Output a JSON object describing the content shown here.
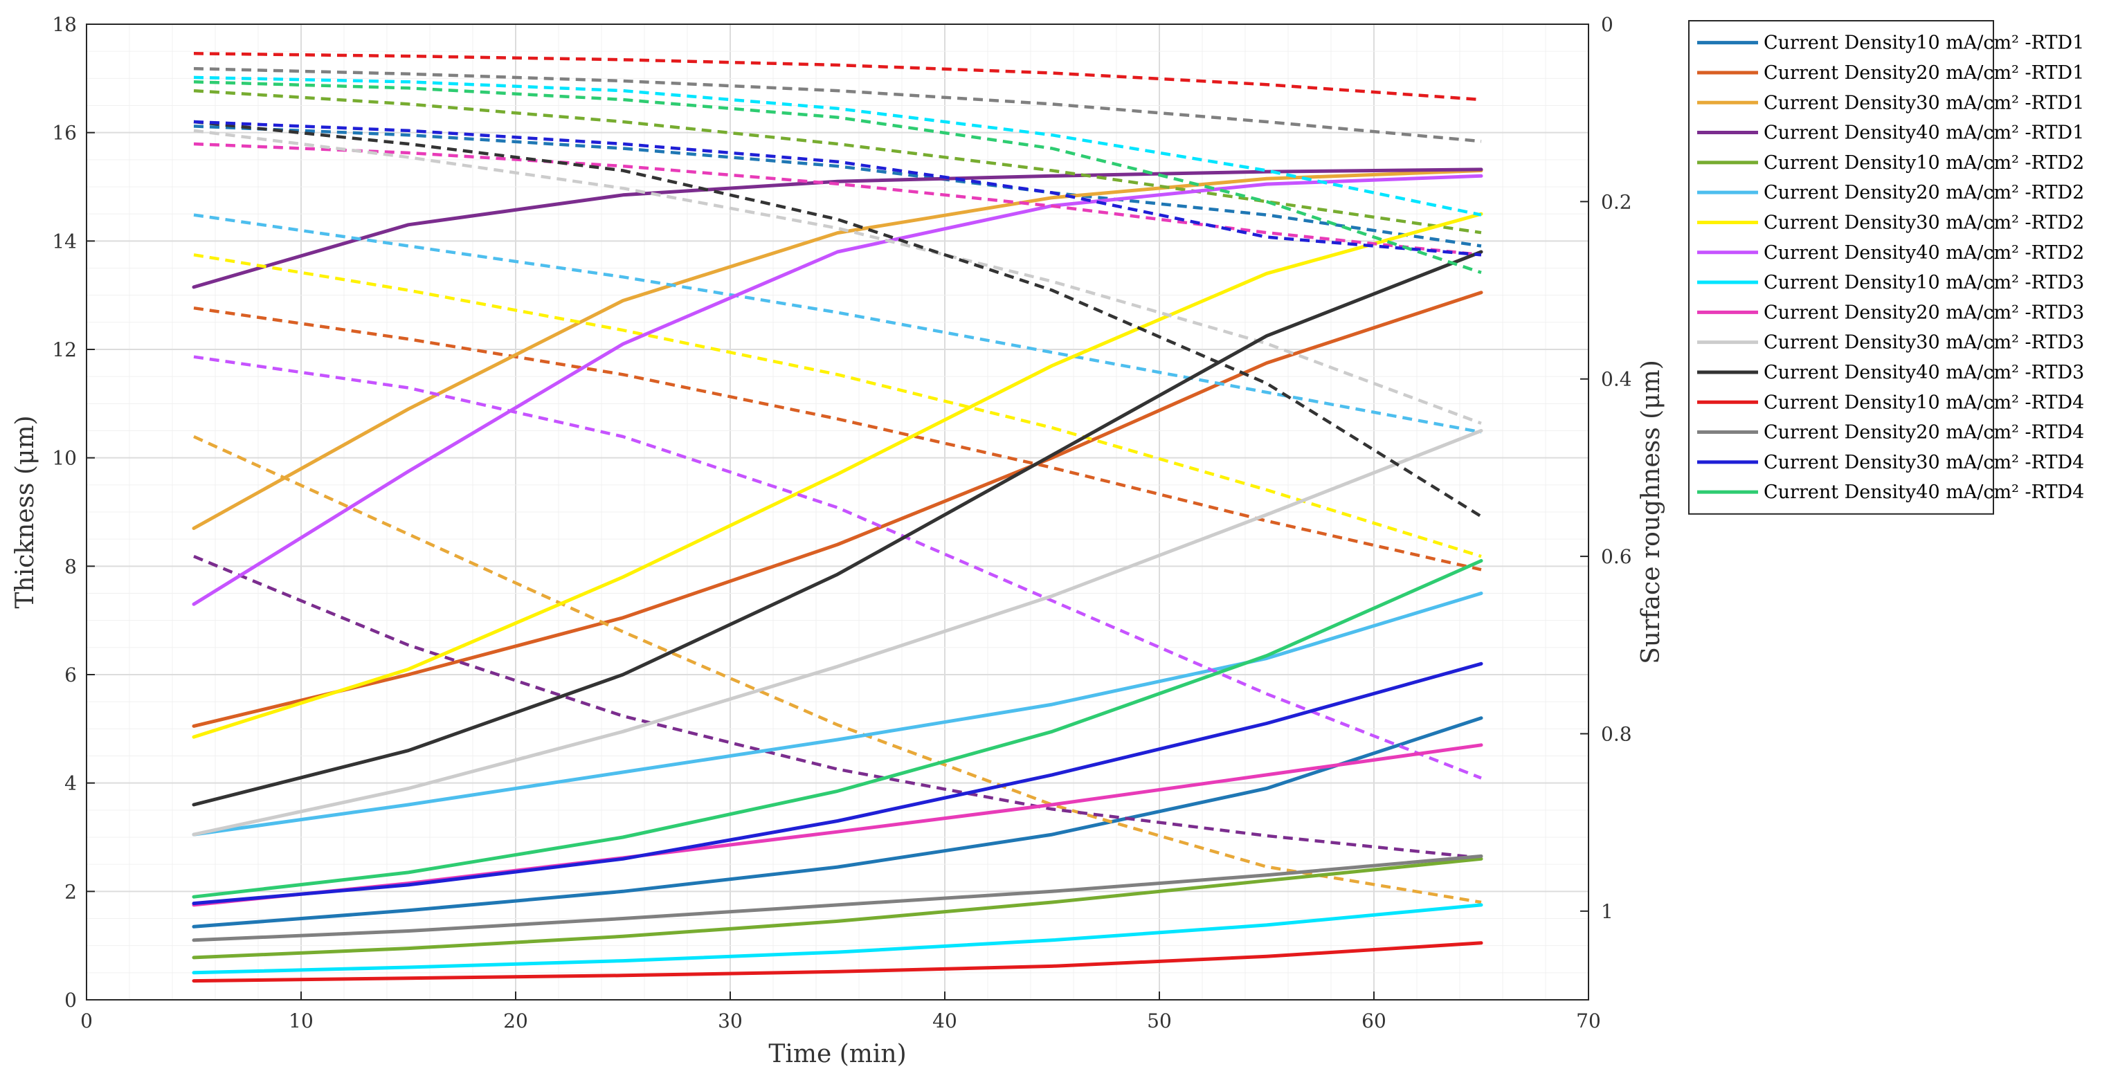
{
  "chart_data": {
    "type": "line",
    "xlabel": "Time (min)",
    "ylabel_left": "Thickness (μm)",
    "ylabel_right": "Surface roughness (μm)",
    "xlim": [
      0,
      70
    ],
    "ylim_left": [
      0,
      18
    ],
    "ylim_right": [
      1.1,
      0
    ],
    "x_ticks": [
      "0",
      "10",
      "20",
      "30",
      "40",
      "50",
      "60",
      "70"
    ],
    "y_left_ticks": [
      "0",
      "2",
      "4",
      "6",
      "8",
      "10",
      "12",
      "14",
      "16",
      "18"
    ],
    "y_right_ticks": [
      "0",
      "0.2",
      "0.4",
      "0.6",
      "0.8",
      "1"
    ],
    "grid": true,
    "legend_position": "outside-top-right",
    "x": [
      5,
      15,
      25,
      35,
      45,
      55,
      65
    ],
    "series": [
      {
        "name": "Current Density10 mA/cm² -RTD1",
        "color": "#1f77b4",
        "thickness": [
          1.35,
          1.65,
          2.0,
          2.45,
          3.05,
          3.9,
          5.2
        ],
        "roughness": [
          0.115,
          0.125,
          0.14,
          0.16,
          0.19,
          0.215,
          0.25
        ]
      },
      {
        "name": "Current Density20 mA/cm² -RTD1",
        "color": "#d95f23",
        "thickness": [
          5.05,
          6.0,
          7.05,
          8.4,
          10.0,
          11.75,
          13.05
        ],
        "roughness": [
          0.32,
          0.355,
          0.395,
          0.445,
          0.5,
          0.56,
          0.615
        ]
      },
      {
        "name": "Current Density30 mA/cm² -RTD1",
        "color": "#e8a838",
        "thickness": [
          8.7,
          10.9,
          12.9,
          14.15,
          14.8,
          15.15,
          15.3
        ],
        "roughness": [
          0.465,
          0.575,
          0.685,
          0.79,
          0.88,
          0.95,
          0.99
        ]
      },
      {
        "name": "Current Density40 mA/cm² -RTD1",
        "color": "#7b2d8e",
        "thickness": [
          13.15,
          14.3,
          14.85,
          15.1,
          15.2,
          15.28,
          15.32
        ],
        "roughness": [
          0.6,
          0.7,
          0.78,
          0.84,
          0.885,
          0.915,
          0.94
        ]
      },
      {
        "name": "Current Density10 mA/cm² -RTD2",
        "color": "#77ac30",
        "thickness": [
          0.78,
          0.95,
          1.17,
          1.45,
          1.8,
          2.2,
          2.6
        ],
        "roughness": [
          0.075,
          0.09,
          0.11,
          0.135,
          0.165,
          0.2,
          0.235
        ]
      },
      {
        "name": "Current Density20 mA/cm² -RTD2",
        "color": "#4dbeee",
        "thickness": [
          3.05,
          3.6,
          4.2,
          4.8,
          5.45,
          6.3,
          7.5
        ],
        "roughness": [
          0.215,
          0.25,
          0.285,
          0.325,
          0.37,
          0.415,
          0.46
        ]
      },
      {
        "name": "Current Density30 mA/cm² -RTD2",
        "color": "#fff200",
        "thickness": [
          4.85,
          6.1,
          7.8,
          9.7,
          11.7,
          13.4,
          14.5
        ],
        "roughness": [
          0.26,
          0.3,
          0.345,
          0.395,
          0.455,
          0.525,
          0.6
        ]
      },
      {
        "name": "Current Density40 mA/cm² -RTD2",
        "color": "#c653ff",
        "thickness": [
          7.3,
          9.75,
          12.1,
          13.8,
          14.65,
          15.05,
          15.2
        ],
        "roughness": [
          0.375,
          0.41,
          0.465,
          0.545,
          0.65,
          0.755,
          0.85
        ]
      },
      {
        "name": "Current Density10 mA/cm² -RTD3",
        "color": "#00e5ff",
        "thickness": [
          0.5,
          0.6,
          0.72,
          0.88,
          1.1,
          1.38,
          1.75
        ],
        "roughness": [
          0.06,
          0.065,
          0.075,
          0.095,
          0.125,
          0.165,
          0.215
        ]
      },
      {
        "name": "Current Density20 mA/cm² -RTD3",
        "color": "#e83bb8",
        "thickness": [
          1.75,
          2.15,
          2.62,
          3.1,
          3.6,
          4.15,
          4.7
        ],
        "roughness": [
          0.135,
          0.145,
          0.16,
          0.18,
          0.205,
          0.235,
          0.26
        ]
      },
      {
        "name": "Current Density30 mA/cm² -RTD3",
        "color": "#cccccc",
        "thickness": [
          3.05,
          3.9,
          4.95,
          6.15,
          7.45,
          8.95,
          10.5
        ],
        "roughness": [
          0.12,
          0.15,
          0.185,
          0.23,
          0.29,
          0.36,
          0.45
        ]
      },
      {
        "name": "Current Density40 mA/cm² -RTD3",
        "color": "#333333",
        "thickness": [
          3.6,
          4.6,
          6.0,
          7.85,
          10.05,
          12.25,
          13.8
        ],
        "roughness": [
          0.11,
          0.135,
          0.165,
          0.22,
          0.3,
          0.405,
          0.555
        ]
      },
      {
        "name": "Current Density10 mA/cm² -RTD4",
        "color": "#e41a1c",
        "thickness": [
          0.35,
          0.4,
          0.45,
          0.52,
          0.62,
          0.8,
          1.05
        ],
        "roughness": [
          0.033,
          0.036,
          0.04,
          0.046,
          0.055,
          0.068,
          0.085
        ]
      },
      {
        "name": "Current Density20 mA/cm² -RTD4",
        "color": "#808080",
        "thickness": [
          1.1,
          1.27,
          1.5,
          1.75,
          2.0,
          2.3,
          2.65
        ],
        "roughness": [
          0.05,
          0.056,
          0.064,
          0.075,
          0.09,
          0.11,
          0.132
        ]
      },
      {
        "name": "Current Density30 mA/cm² -RTD4",
        "color": "#1f1fd6",
        "thickness": [
          1.78,
          2.12,
          2.6,
          3.3,
          4.15,
          5.1,
          6.2
        ],
        "roughness": [
          0.11,
          0.12,
          0.135,
          0.155,
          0.19,
          0.24,
          0.26
        ]
      },
      {
        "name": "Current Density40 mA/cm² -RTD4",
        "color": "#2ecc71",
        "thickness": [
          1.9,
          2.35,
          3.0,
          3.85,
          4.95,
          6.35,
          8.1
        ],
        "roughness": [
          0.065,
          0.072,
          0.085,
          0.105,
          0.14,
          0.2,
          0.28
        ]
      }
    ]
  }
}
